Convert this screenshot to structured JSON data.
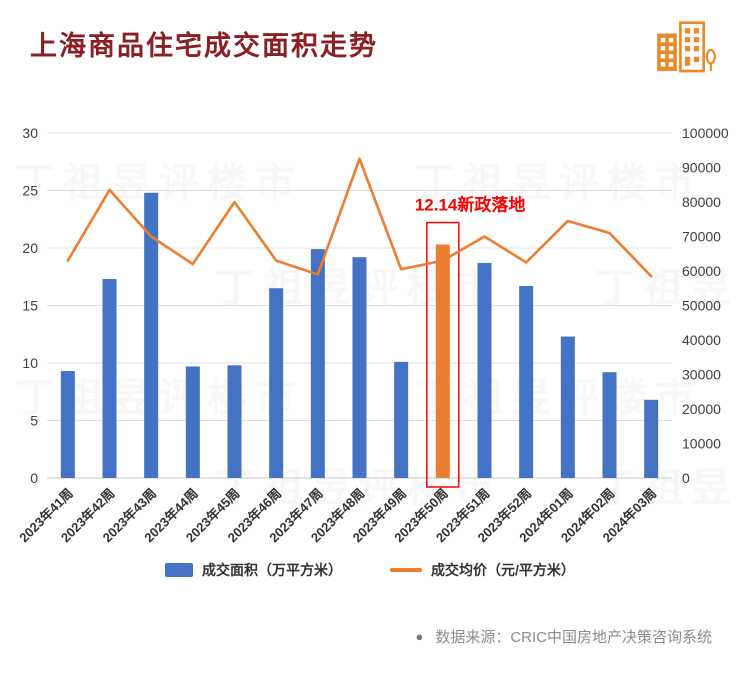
{
  "header": {
    "title": "上海商品住宅成交面积走势"
  },
  "brand_icon": {
    "name": "building-icon",
    "color": "#E98A2B"
  },
  "chart_data": {
    "type": "combo-bar-line",
    "title": "上海商品住宅成交面积走势",
    "categories": [
      "2023年41周",
      "2023年42周",
      "2023年43周",
      "2023年44周",
      "2023年45周",
      "2023年46周",
      "2023年47周",
      "2023年48周",
      "2023年49周",
      "2023年50周",
      "2023年51周",
      "2023年52周",
      "2024年01周",
      "2024年02周",
      "2024年03周"
    ],
    "series": [
      {
        "name": "成交面积（万平方米）",
        "type": "bar",
        "axis": "left",
        "color": "#4472C4",
        "highlight_index": 9,
        "highlight_color": "#ED7D31",
        "values": [
          9.3,
          17.3,
          24.8,
          9.7,
          9.8,
          16.5,
          19.9,
          19.2,
          10.1,
          20.3,
          18.7,
          16.7,
          12.3,
          9.2,
          6.8
        ]
      },
      {
        "name": "成交均价（元/平方米）",
        "type": "line",
        "axis": "right",
        "color": "#ED7D31",
        "values": [
          63000,
          83500,
          70000,
          62000,
          80000,
          63000,
          59000,
          92500,
          60500,
          63000,
          70000,
          62500,
          74500,
          71000,
          58500
        ]
      }
    ],
    "left_axis": {
      "min": 0,
      "max": 30,
      "step": 5
    },
    "right_axis": {
      "min": 0,
      "max": 100000,
      "step": 10000
    },
    "grid": true,
    "legend_position": "bottom",
    "annotation": {
      "text": "12.14新政落地",
      "color": "#FF0000",
      "target_index": 9
    }
  },
  "legend": {
    "items": [
      {
        "label": "成交面积（万平方米）",
        "swatch": "bar",
        "color": "#4472C4"
      },
      {
        "label": "成交均价（元/平方米）",
        "swatch": "line",
        "color": "#ED7D31"
      }
    ]
  },
  "footer": {
    "bullet": "●",
    "source": "数据来源：CRIC中国房地产决策咨询系统"
  },
  "watermark": {
    "text": "丁祖昱评楼市"
  }
}
